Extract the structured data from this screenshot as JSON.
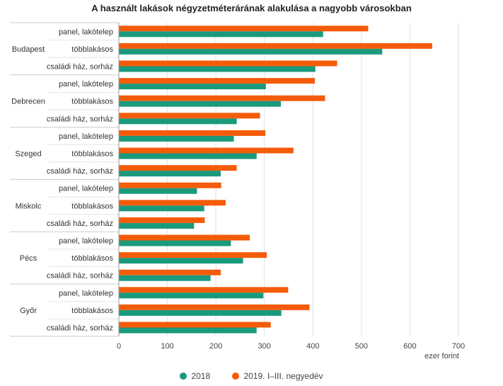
{
  "chart_data": {
    "type": "bar",
    "orientation": "horizontal",
    "title": "A használt lakások négyzetméterárának alakulása a nagyobb városokban",
    "x_unit": "ezer forint",
    "xlim": [
      0,
      700
    ],
    "x_ticks": [
      0,
      100,
      200,
      300,
      400,
      500,
      600,
      700
    ],
    "grid": true,
    "legend_position": "bottom",
    "groups": [
      {
        "name": "Budapest",
        "categories": [
          "panel, lakótelep",
          "többlakásos",
          "családi ház, sorház"
        ]
      },
      {
        "name": "Debrecen",
        "categories": [
          "panel, lakótelep",
          "többlakásos",
          "családi ház, sorház"
        ]
      },
      {
        "name": "Szeged",
        "categories": [
          "panel, lakótelep",
          "többlakásos",
          "családi ház, sorház"
        ]
      },
      {
        "name": "Miskolc",
        "categories": [
          "panel, lakótelep",
          "többlakásos",
          "családi ház, sorház"
        ]
      },
      {
        "name": "Pécs",
        "categories": [
          "panel, lakótelep",
          "többlakásos",
          "családi ház, sorház"
        ]
      },
      {
        "name": "Győr",
        "categories": [
          "panel, lakótelep",
          "többlakásos",
          "családi ház, sorház"
        ]
      }
    ],
    "series": [
      {
        "name": "2018",
        "color": "#1a9a7c",
        "values": [
          421,
          543,
          405,
          303,
          334,
          243,
          237,
          284,
          210,
          161,
          176,
          155,
          231,
          256,
          189,
          298,
          335,
          284
        ]
      },
      {
        "name": "2019. I–III. negyedév",
        "color": "#f45c0a",
        "values": [
          514,
          646,
          450,
          404,
          425,
          291,
          302,
          360,
          243,
          211,
          220,
          177,
          270,
          305,
          210,
          349,
          393,
          313
        ]
      }
    ]
  }
}
